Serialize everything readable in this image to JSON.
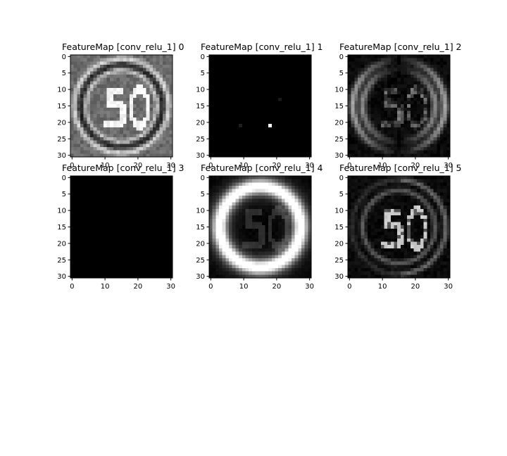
{
  "chart_data": [
    {
      "type": "heatmap",
      "title": "FeatureMap [conv_relu_1] 0",
      "xlim": [
        0,
        30
      ],
      "ylim": [
        30,
        0
      ],
      "xticks": [
        "0",
        "10",
        "20",
        "30"
      ],
      "yticks": [
        "0",
        "5",
        "10",
        "15",
        "20",
        "25",
        "30"
      ],
      "colormap": "gray",
      "pattern": "speed-limit sign edges with bright '50', mid-gray background"
    },
    {
      "type": "heatmap",
      "title": "FeatureMap [conv_relu_1] 1",
      "xlim": [
        0,
        30
      ],
      "ylim": [
        30,
        0
      ],
      "xticks": [
        "0",
        "10",
        "20",
        "30"
      ],
      "yticks": [
        "0",
        "5",
        "10",
        "15",
        "20",
        "25",
        "30"
      ],
      "colormap": "gray",
      "pattern": "almost entirely black with a few isolated bright pixels"
    },
    {
      "type": "heatmap",
      "title": "FeatureMap [conv_relu_1] 2",
      "xlim": [
        0,
        30
      ],
      "ylim": [
        30,
        0
      ],
      "xticks": [
        "0",
        "10",
        "20",
        "30"
      ],
      "yticks": [
        "0",
        "5",
        "10",
        "15",
        "20",
        "25",
        "30"
      ],
      "colormap": "gray",
      "pattern": "thin vertical edge responses outlining ring and '50'"
    },
    {
      "type": "heatmap",
      "title": "FeatureMap [conv_relu_1] 3",
      "xlim": [
        0,
        30
      ],
      "ylim": [
        30,
        0
      ],
      "xticks": [
        "0",
        "10",
        "20",
        "30"
      ],
      "yticks": [
        "0",
        "5",
        "10",
        "15",
        "20",
        "25",
        "30"
      ],
      "colormap": "gray",
      "pattern": "entirely black"
    },
    {
      "type": "heatmap",
      "title": "FeatureMap [conv_relu_1] 4",
      "xlim": [
        0,
        30
      ],
      "ylim": [
        30,
        0
      ],
      "xticks": [
        "0",
        "10",
        "20",
        "30"
      ],
      "yticks": [
        "0",
        "5",
        "10",
        "15",
        "20",
        "25",
        "30"
      ],
      "colormap": "gray",
      "pattern": "bright thick ring with dim '50' inside"
    },
    {
      "type": "heatmap",
      "title": "FeatureMap [conv_relu_1] 5",
      "xlim": [
        0,
        30
      ],
      "ylim": [
        30,
        0
      ],
      "xticks": [
        "0",
        "10",
        "20",
        "30"
      ],
      "yticks": [
        "0",
        "5",
        "10",
        "15",
        "20",
        "25",
        "30"
      ],
      "colormap": "gray",
      "pattern": "diagonal edge responses, bright left edges of '50'"
    }
  ]
}
